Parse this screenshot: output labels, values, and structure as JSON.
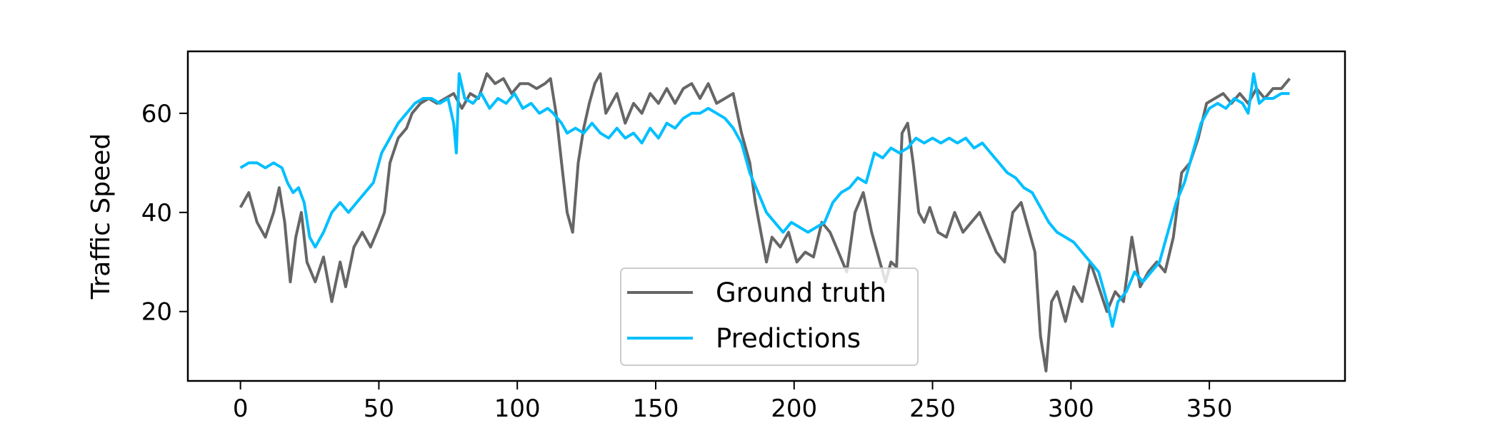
{
  "chart_data": {
    "type": "line",
    "title": "",
    "xlabel": "",
    "ylabel": "Traffic Speed",
    "xlim": [
      -19,
      399
    ],
    "ylim": [
      6,
      72.5
    ],
    "xticks": [
      0,
      50,
      100,
      150,
      200,
      250,
      300,
      350
    ],
    "xtick_labels": [
      "0",
      "50",
      "100",
      "150",
      "200",
      "250",
      "300",
      "350"
    ],
    "yticks": [
      20,
      40,
      60
    ],
    "ytick_labels": [
      "20",
      "40",
      "60"
    ],
    "grid": false,
    "legend_position": "lower-center",
    "series": [
      {
        "name": "Ground truth",
        "color": "#666666",
        "points": [
          [
            0,
            41
          ],
          [
            3,
            44
          ],
          [
            6,
            38
          ],
          [
            9,
            35
          ],
          [
            12,
            40
          ],
          [
            14,
            45
          ],
          [
            16,
            38
          ],
          [
            18,
            26
          ],
          [
            20,
            35
          ],
          [
            22,
            40
          ],
          [
            24,
            30
          ],
          [
            27,
            26
          ],
          [
            30,
            31
          ],
          [
            33,
            22
          ],
          [
            36,
            30
          ],
          [
            38,
            25
          ],
          [
            41,
            33
          ],
          [
            44,
            36
          ],
          [
            47,
            33
          ],
          [
            50,
            37
          ],
          [
            52,
            40
          ],
          [
            54,
            50
          ],
          [
            57,
            55
          ],
          [
            60,
            57
          ],
          [
            62,
            60
          ],
          [
            65,
            62
          ],
          [
            68,
            63
          ],
          [
            71,
            62
          ],
          [
            74,
            63
          ],
          [
            77,
            64
          ],
          [
            80,
            61
          ],
          [
            83,
            64
          ],
          [
            86,
            63
          ],
          [
            89,
            68
          ],
          [
            92,
            66
          ],
          [
            95,
            67
          ],
          [
            98,
            64
          ],
          [
            101,
            66
          ],
          [
            104,
            66
          ],
          [
            107,
            65
          ],
          [
            110,
            66
          ],
          [
            112,
            67
          ],
          [
            114,
            60
          ],
          [
            116,
            50
          ],
          [
            118,
            40
          ],
          [
            120,
            36
          ],
          [
            122,
            50
          ],
          [
            124,
            57
          ],
          [
            126,
            62
          ],
          [
            128,
            66
          ],
          [
            130,
            68
          ],
          [
            132,
            60
          ],
          [
            134,
            62
          ],
          [
            136,
            64
          ],
          [
            139,
            58
          ],
          [
            142,
            62
          ],
          [
            145,
            60
          ],
          [
            148,
            64
          ],
          [
            151,
            62
          ],
          [
            154,
            65
          ],
          [
            157,
            62
          ],
          [
            160,
            65
          ],
          [
            163,
            66
          ],
          [
            166,
            63
          ],
          [
            169,
            66
          ],
          [
            172,
            62
          ],
          [
            175,
            63
          ],
          [
            178,
            64
          ],
          [
            181,
            56
          ],
          [
            184,
            50
          ],
          [
            186,
            42
          ],
          [
            188,
            36
          ],
          [
            190,
            30
          ],
          [
            192,
            35
          ],
          [
            195,
            33
          ],
          [
            198,
            36
          ],
          [
            201,
            30
          ],
          [
            204,
            32
          ],
          [
            207,
            31
          ],
          [
            210,
            38
          ],
          [
            213,
            36
          ],
          [
            216,
            32
          ],
          [
            219,
            28
          ],
          [
            222,
            40
          ],
          [
            225,
            44
          ],
          [
            228,
            36
          ],
          [
            231,
            30
          ],
          [
            233,
            26
          ],
          [
            235,
            30
          ],
          [
            237,
            29
          ],
          [
            239,
            56
          ],
          [
            241,
            58
          ],
          [
            243,
            50
          ],
          [
            245,
            40
          ],
          [
            247,
            38
          ],
          [
            249,
            41
          ],
          [
            252,
            36
          ],
          [
            255,
            35
          ],
          [
            258,
            40
          ],
          [
            261,
            36
          ],
          [
            264,
            38
          ],
          [
            267,
            40
          ],
          [
            270,
            36
          ],
          [
            273,
            32
          ],
          [
            276,
            30
          ],
          [
            279,
            40
          ],
          [
            282,
            42
          ],
          [
            285,
            36
          ],
          [
            287,
            32
          ],
          [
            289,
            15
          ],
          [
            291,
            8
          ],
          [
            293,
            22
          ],
          [
            295,
            24
          ],
          [
            298,
            18
          ],
          [
            301,
            25
          ],
          [
            304,
            22
          ],
          [
            307,
            30
          ],
          [
            310,
            25
          ],
          [
            313,
            20
          ],
          [
            316,
            24
          ],
          [
            319,
            22
          ],
          [
            322,
            35
          ],
          [
            325,
            25
          ],
          [
            328,
            28
          ],
          [
            331,
            30
          ],
          [
            334,
            28
          ],
          [
            337,
            35
          ],
          [
            340,
            48
          ],
          [
            343,
            50
          ],
          [
            346,
            55
          ],
          [
            349,
            62
          ],
          [
            352,
            63
          ],
          [
            355,
            64
          ],
          [
            358,
            62
          ],
          [
            361,
            64
          ],
          [
            364,
            62
          ],
          [
            367,
            65
          ],
          [
            370,
            63
          ],
          [
            373,
            65
          ],
          [
            376,
            65
          ],
          [
            379,
            67
          ]
        ]
      },
      {
        "name": "Predictions",
        "color": "#00bfff",
        "points": [
          [
            0,
            49
          ],
          [
            3,
            50
          ],
          [
            6,
            50
          ],
          [
            9,
            49
          ],
          [
            12,
            50
          ],
          [
            15,
            49
          ],
          [
            17,
            46
          ],
          [
            19,
            44
          ],
          [
            21,
            45
          ],
          [
            23,
            42
          ],
          [
            25,
            35
          ],
          [
            27,
            33
          ],
          [
            30,
            36
          ],
          [
            33,
            40
          ],
          [
            36,
            42
          ],
          [
            39,
            40
          ],
          [
            42,
            42
          ],
          [
            45,
            44
          ],
          [
            48,
            46
          ],
          [
            51,
            52
          ],
          [
            54,
            55
          ],
          [
            57,
            58
          ],
          [
            60,
            60
          ],
          [
            63,
            62
          ],
          [
            66,
            63
          ],
          [
            69,
            63
          ],
          [
            72,
            62
          ],
          [
            75,
            63
          ],
          [
            77,
            58
          ],
          [
            78,
            52
          ],
          [
            79,
            68
          ],
          [
            81,
            63
          ],
          [
            84,
            62
          ],
          [
            87,
            64
          ],
          [
            90,
            61
          ],
          [
            93,
            63
          ],
          [
            96,
            62
          ],
          [
            99,
            64
          ],
          [
            102,
            61
          ],
          [
            105,
            62
          ],
          [
            108,
            60
          ],
          [
            111,
            61
          ],
          [
            113,
            60
          ],
          [
            116,
            58
          ],
          [
            118,
            56
          ],
          [
            121,
            57
          ],
          [
            124,
            56
          ],
          [
            127,
            58
          ],
          [
            130,
            56
          ],
          [
            133,
            55
          ],
          [
            136,
            57
          ],
          [
            139,
            55
          ],
          [
            142,
            56
          ],
          [
            145,
            54
          ],
          [
            148,
            57
          ],
          [
            151,
            55
          ],
          [
            154,
            58
          ],
          [
            157,
            57
          ],
          [
            160,
            59
          ],
          [
            163,
            60
          ],
          [
            166,
            60
          ],
          [
            169,
            61
          ],
          [
            172,
            60
          ],
          [
            175,
            59
          ],
          [
            178,
            57
          ],
          [
            181,
            54
          ],
          [
            184,
            48
          ],
          [
            187,
            44
          ],
          [
            190,
            40
          ],
          [
            193,
            38
          ],
          [
            196,
            36
          ],
          [
            199,
            38
          ],
          [
            202,
            37
          ],
          [
            205,
            36
          ],
          [
            208,
            37
          ],
          [
            211,
            38
          ],
          [
            214,
            42
          ],
          [
            217,
            44
          ],
          [
            220,
            45
          ],
          [
            223,
            47
          ],
          [
            226,
            46
          ],
          [
            229,
            52
          ],
          [
            232,
            51
          ],
          [
            235,
            53
          ],
          [
            238,
            52
          ],
          [
            241,
            53
          ],
          [
            244,
            55
          ],
          [
            247,
            54
          ],
          [
            250,
            55
          ],
          [
            253,
            54
          ],
          [
            256,
            55
          ],
          [
            259,
            54
          ],
          [
            262,
            55
          ],
          [
            265,
            53
          ],
          [
            268,
            54
          ],
          [
            271,
            52
          ],
          [
            274,
            50
          ],
          [
            277,
            48
          ],
          [
            280,
            47
          ],
          [
            283,
            45
          ],
          [
            286,
            44
          ],
          [
            289,
            41
          ],
          [
            292,
            38
          ],
          [
            295,
            36
          ],
          [
            298,
            35
          ],
          [
            301,
            34
          ],
          [
            304,
            32
          ],
          [
            307,
            30
          ],
          [
            310,
            28
          ],
          [
            313,
            22
          ],
          [
            315,
            17
          ],
          [
            317,
            22
          ],
          [
            320,
            24
          ],
          [
            323,
            28
          ],
          [
            326,
            26
          ],
          [
            329,
            28
          ],
          [
            332,
            30
          ],
          [
            335,
            36
          ],
          [
            338,
            42
          ],
          [
            341,
            46
          ],
          [
            344,
            52
          ],
          [
            347,
            58
          ],
          [
            350,
            61
          ],
          [
            353,
            62
          ],
          [
            356,
            61
          ],
          [
            359,
            63
          ],
          [
            362,
            62
          ],
          [
            364,
            60
          ],
          [
            366,
            68
          ],
          [
            368,
            62
          ],
          [
            370,
            63
          ],
          [
            373,
            63
          ],
          [
            376,
            64
          ],
          [
            379,
            64
          ]
        ]
      }
    ]
  }
}
